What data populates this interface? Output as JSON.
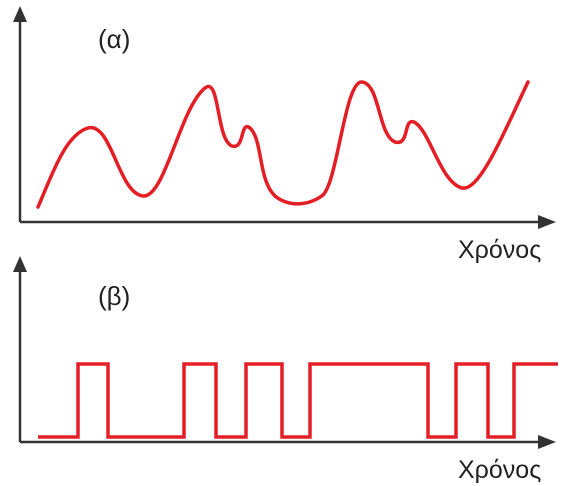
{
  "panel_a": {
    "label": "(α)",
    "axis_label": "Χρόνος",
    "signal_type": "analog",
    "signal_color": "#e31e24"
  },
  "panel_b": {
    "label": "(β)",
    "axis_label": "Χρόνος",
    "signal_type": "digital",
    "signal_color": "#e31e24",
    "levels": [
      0,
      1,
      0,
      0,
      1,
      0,
      1,
      0,
      1,
      1,
      1,
      1,
      0,
      1,
      0,
      1
    ]
  },
  "colors": {
    "axis": "#333333",
    "signal": "#e31e24"
  }
}
